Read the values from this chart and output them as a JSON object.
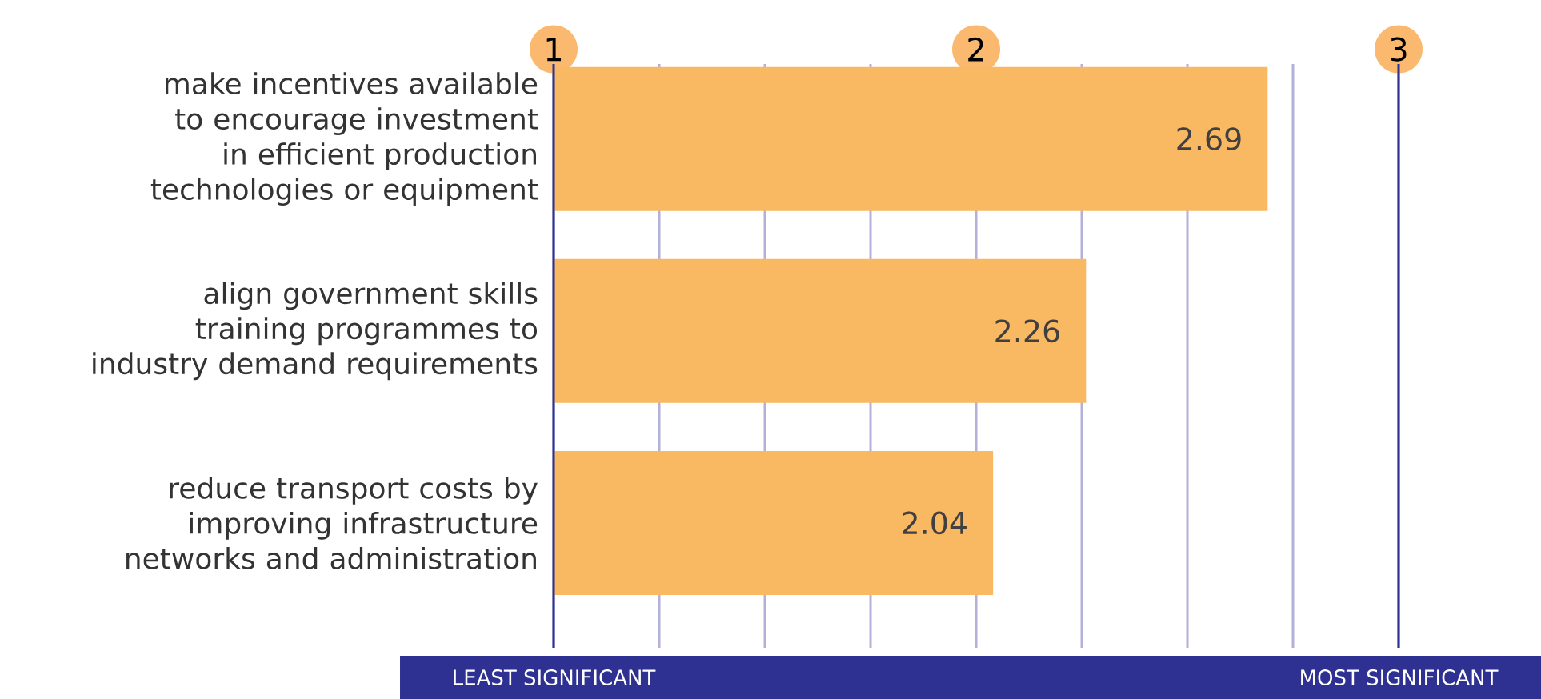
{
  "chart_data": {
    "type": "bar",
    "orientation": "horizontal",
    "categories": [
      "make incentives available to encourage investment in efficient production technologies or equipment",
      "align government skills training programmes to industry demand requirements",
      "reduce transport costs by improving infrastructure networks and administration"
    ],
    "values": [
      2.69,
      2.26,
      2.04
    ],
    "color": "#f9b862",
    "xlim": [
      1,
      3
    ],
    "xticks": [
      1,
      {
        "value": 1.25,
        "label": null
      },
      {
        "value": 1.5,
        "label": null
      },
      {
        "value": 1.75,
        "label": null
      },
      2,
      {
        "value": 2.25,
        "label": null
      },
      {
        "value": 2.5,
        "label": null
      },
      {
        "value": 2.75,
        "label": null
      },
      3
    ],
    "grid": "x",
    "data_labels": true,
    "annotations": [
      "LEAST SIGNIFICANT",
      "MOST SIGNIFICANT"
    ]
  }
}
